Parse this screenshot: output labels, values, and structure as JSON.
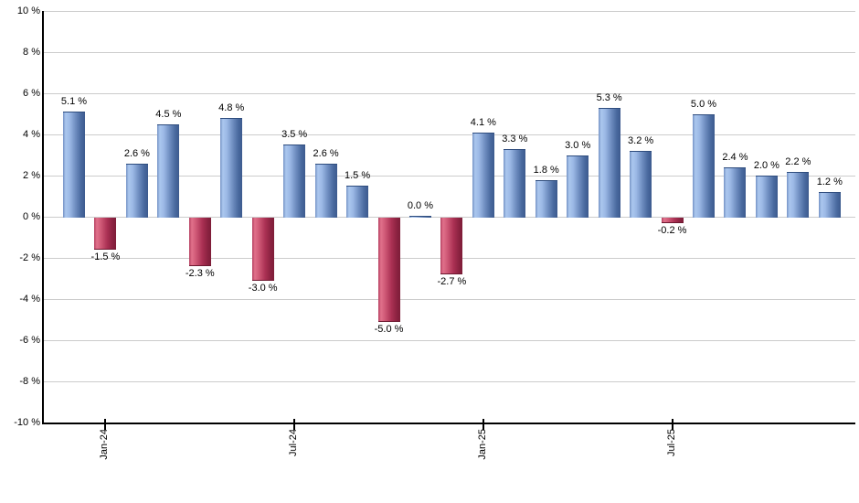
{
  "chart_data": {
    "type": "bar",
    "title": "",
    "xlabel": "",
    "ylabel": "",
    "grid": "horizontal",
    "legend": "none",
    "ylim": [
      -10,
      10
    ],
    "y_ticks": [
      10,
      8,
      6,
      4,
      2,
      0,
      -2,
      -4,
      -6,
      -8,
      -10
    ],
    "y_tick_suffix": " %",
    "value_label_suffix": " %",
    "bar_count": 25,
    "values": [
      5.1,
      -1.5,
      2.6,
      4.5,
      -2.3,
      4.8,
      -3.0,
      3.5,
      2.6,
      1.5,
      -5.0,
      0.0,
      -2.7,
      4.1,
      3.3,
      1.8,
      3.0,
      5.3,
      3.2,
      -0.2,
      5.0,
      2.4,
      2.0,
      2.2,
      1.2
    ],
    "value_labels": [
      "5.1 %",
      "-1.5 %",
      "2.6 %",
      "4.5 %",
      "-2.3 %",
      "4.8 %",
      "-3.0 %",
      "3.5 %",
      "2.6 %",
      "1.5 %",
      "-5.0 %",
      "0.0 %",
      "-2.7 %",
      "4.1 %",
      "3.3 %",
      "1.8 %",
      "3.0 %",
      "5.3 %",
      "3.2 %",
      "-0.2 %",
      "5.0 %",
      "2.4 %",
      "2.0 %",
      "2.2 %",
      "1.2 %"
    ],
    "x_ticks": [
      {
        "bar_index": 1,
        "label": "Jan-24"
      },
      {
        "bar_index": 7,
        "label": "Jul-24"
      },
      {
        "bar_index": 13,
        "label": "Jan-25"
      },
      {
        "bar_index": 19,
        "label": "Jul-25"
      }
    ],
    "colors": {
      "positive_bar_light": "#abc7ee",
      "positive_bar_dark": "#3c5a8e",
      "negative_bar_light": "#e1718b",
      "negative_bar_dark": "#7e1d38",
      "gridline": "#cccccc",
      "axis": "#000000",
      "label_text": "#000000",
      "background": "#ffffff"
    }
  }
}
